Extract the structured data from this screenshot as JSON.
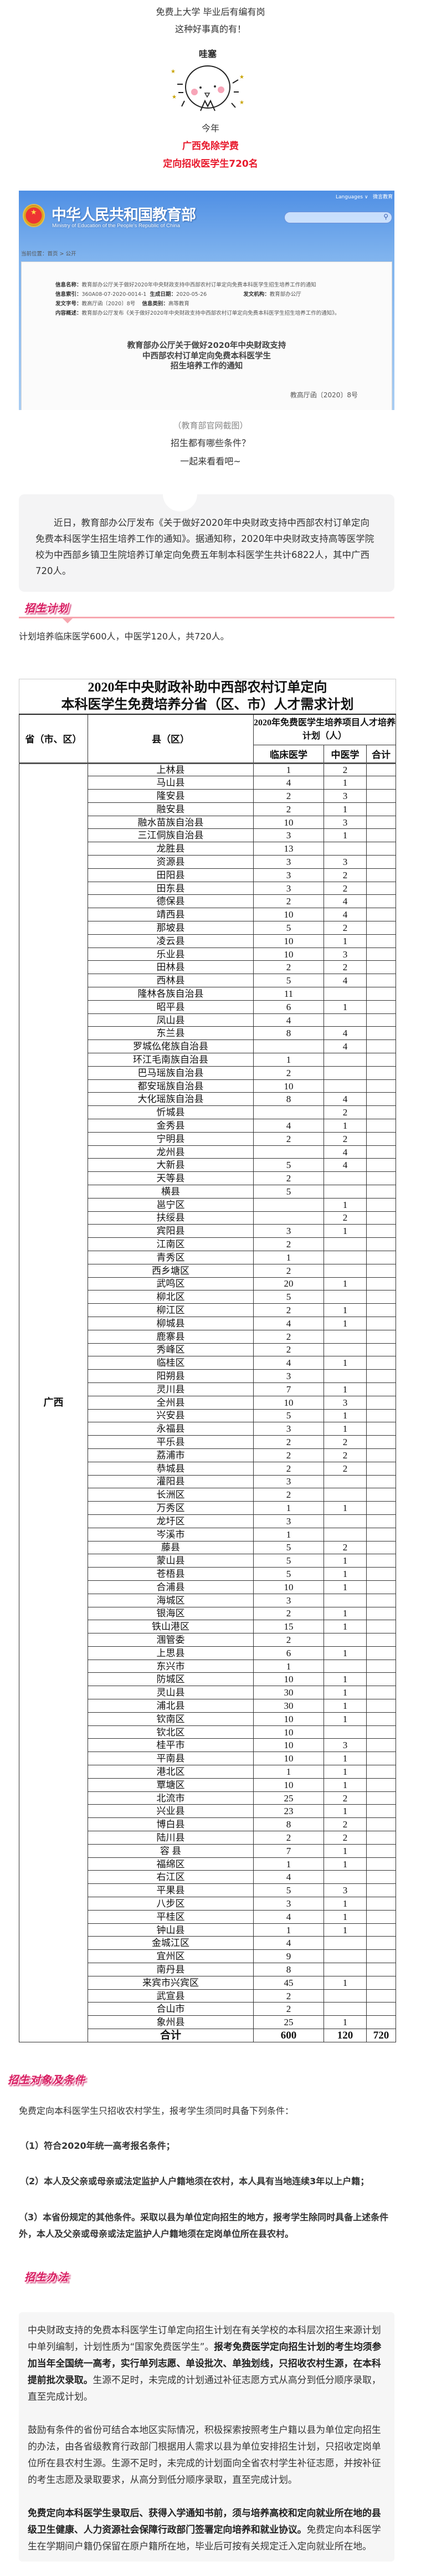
{
  "intro_lines": {
    "line1": "免费上大学 毕业后有编有岗",
    "line2": "这种好事真的有！",
    "mascot_label": "哇塞",
    "line3": "今年",
    "highlight1": "广西免除学费",
    "highlight2": "定向招收医学生720名"
  },
  "moe_screenshot": {
    "site_title": "中华人民共和国教育部",
    "site_subtitle": "Ministry of Education of the People's Republic of China",
    "languages": "Languages ∨",
    "weiyan": "微言教育",
    "search_icon": "search-icon",
    "breadcrumb": "当前位置：首页 > 公开",
    "info": {
      "name_label": "信息名称：",
      "name_value": "教育部办公厅关于做好2020年中央财政支持中西部农村订单定向免费本科医学生招生培养工作的通知",
      "index_label": "信息索引：",
      "index_value": "360A08-07-2020-0014-1",
      "date_label": "生成日期：",
      "date_value": "2020-05-26",
      "org_label": "发文机构：",
      "org_value": "教育部办公厅",
      "docno_label": "发文字号：",
      "docno_value": "教高厅函〔2020〕8号",
      "category_label": "信息类别：",
      "category_value": "高等教育",
      "summary_label": "内容概述：",
      "summary_value": "教育部办公厅发布《关于做好2020年中央财政支持中西部农村订单定向免费本科医学生招生培养工作的通知》。"
    },
    "doc_title": [
      "教育部办公厅关于做好2020年中央财政支持",
      "中西部农村订单定向免费本科医学生",
      "招生培养工作的通知"
    ],
    "doc_number": "教高厅函〔2020〕8号"
  },
  "caption": "（教育部官网截图）",
  "question": "招生都有哪些条件？",
  "lets_see": "一起来看看吧~",
  "intro_paragraph": "近日，教育部办公厅发布《关于做好2020年中央财政支持中西部农村订单定向免费本科医学生招生培养工作的通知》。据通知称，2020年中央财政支持高等医学院校为中西部乡镇卫生院培养订单定向免费五年制本科医学生共计6822人，其中广西720人。",
  "section_plan": {
    "heading": "招生计划",
    "text": "计划培养临床医学600人，中医学120人，共720人。"
  },
  "table": {
    "title": [
      "2020年中央财政补助中西部农村订单定向",
      "本科医学生免费培养分省（区、市）人才需求计划"
    ],
    "header_province": "省（市、区）",
    "header_county": "县（区）",
    "header_plan": "2020年免费医学生培养项目人才培养计划（人）",
    "header_clinical": "临床医学",
    "header_tcm": "中医学",
    "header_total": "合计",
    "province": "广西",
    "rows": [
      [
        "上林县",
        "1",
        "2",
        ""
      ],
      [
        "马山县",
        "4",
        "1",
        ""
      ],
      [
        "隆安县",
        "2",
        "3",
        ""
      ],
      [
        "融安县",
        "2",
        "1",
        ""
      ],
      [
        "融水苗族自治县",
        "10",
        "3",
        ""
      ],
      [
        "三江侗族自治县",
        "3",
        "1",
        ""
      ],
      [
        "龙胜县",
        "13",
        "",
        ""
      ],
      [
        "资源县",
        "3",
        "3",
        ""
      ],
      [
        "田阳县",
        "3",
        "2",
        ""
      ],
      [
        "田东县",
        "3",
        "2",
        ""
      ],
      [
        "德保县",
        "2",
        "4",
        ""
      ],
      [
        "靖西县",
        "10",
        "4",
        ""
      ],
      [
        "那坡县",
        "5",
        "2",
        ""
      ],
      [
        "凌云县",
        "10",
        "1",
        ""
      ],
      [
        "乐业县",
        "10",
        "3",
        ""
      ],
      [
        "田林县",
        "2",
        "2",
        ""
      ],
      [
        "西林县",
        "5",
        "4",
        ""
      ],
      [
        "隆林各族自治县",
        "11",
        "",
        ""
      ],
      [
        "昭平县",
        "6",
        "1",
        ""
      ],
      [
        "凤山县",
        "4",
        "",
        ""
      ],
      [
        "东兰县",
        "8",
        "4",
        ""
      ],
      [
        "罗城仫佬族自治县",
        "",
        "4",
        ""
      ],
      [
        "环江毛南族自治县",
        "1",
        "",
        ""
      ],
      [
        "巴马瑶族自治县",
        "2",
        "",
        ""
      ],
      [
        "都安瑶族自治县",
        "10",
        "",
        ""
      ],
      [
        "大化瑶族自治县",
        "8",
        "4",
        ""
      ],
      [
        "忻城县",
        "",
        "2",
        ""
      ],
      [
        "金秀县",
        "4",
        "1",
        ""
      ],
      [
        "宁明县",
        "2",
        "2",
        ""
      ],
      [
        "龙州县",
        "",
        "4",
        ""
      ],
      [
        "大新县",
        "5",
        "4",
        ""
      ],
      [
        "天等县",
        "2",
        "",
        ""
      ],
      [
        "横县",
        "5",
        "",
        ""
      ],
      [
        "邕宁区",
        "",
        "1",
        ""
      ],
      [
        "扶绥县",
        "",
        "2",
        ""
      ],
      [
        "宾阳县",
        "3",
        "1",
        ""
      ],
      [
        "江南区",
        "2",
        "",
        ""
      ],
      [
        "青秀区",
        "1",
        "",
        ""
      ],
      [
        "西乡塘区",
        "2",
        "",
        ""
      ],
      [
        "武鸣区",
        "20",
        "1",
        ""
      ],
      [
        "柳北区",
        "5",
        "",
        ""
      ],
      [
        "柳江区",
        "2",
        "1",
        ""
      ],
      [
        "柳城县",
        "4",
        "1",
        ""
      ],
      [
        "鹿寨县",
        "2",
        "",
        ""
      ],
      [
        "秀峰区",
        "2",
        "",
        ""
      ],
      [
        "临桂区",
        "4",
        "1",
        ""
      ],
      [
        "阳朔县",
        "3",
        "",
        ""
      ],
      [
        "灵川县",
        "7",
        "1",
        ""
      ],
      [
        "全州县",
        "10",
        "3",
        ""
      ],
      [
        "兴安县",
        "5",
        "1",
        ""
      ],
      [
        "永福县",
        "3",
        "1",
        ""
      ],
      [
        "平乐县",
        "2",
        "2",
        ""
      ],
      [
        "荔浦市",
        "2",
        "2",
        ""
      ],
      [
        "恭城县",
        "2",
        "2",
        ""
      ],
      [
        "灌阳县",
        "3",
        "",
        ""
      ],
      [
        "长洲区",
        "2",
        "",
        ""
      ],
      [
        "万秀区",
        "1",
        "1",
        ""
      ],
      [
        "龙圩区",
        "3",
        "",
        ""
      ],
      [
        "岑溪市",
        "1",
        "",
        ""
      ],
      [
        "藤县",
        "5",
        "2",
        ""
      ],
      [
        "蒙山县",
        "5",
        "1",
        ""
      ],
      [
        "苍梧县",
        "5",
        "1",
        ""
      ],
      [
        "合浦县",
        "10",
        "1",
        ""
      ],
      [
        "海城区",
        "3",
        "",
        ""
      ],
      [
        "银海区",
        "2",
        "1",
        ""
      ],
      [
        "铁山港区",
        "15",
        "1",
        ""
      ],
      [
        "涠管委",
        "2",
        "",
        ""
      ],
      [
        "上思县",
        "6",
        "1",
        ""
      ],
      [
        "东兴市",
        "1",
        "",
        ""
      ],
      [
        "防城区",
        "10",
        "1",
        ""
      ],
      [
        "灵山县",
        "30",
        "1",
        ""
      ],
      [
        "浦北县",
        "30",
        "1",
        ""
      ],
      [
        "钦南区",
        "10",
        "1",
        ""
      ],
      [
        "钦北区",
        "10",
        "",
        ""
      ],
      [
        "桂平市",
        "10",
        "3",
        ""
      ],
      [
        "平南县",
        "10",
        "1",
        ""
      ],
      [
        "港北区",
        "1",
        "1",
        ""
      ],
      [
        "覃塘区",
        "10",
        "1",
        ""
      ],
      [
        "北流市",
        "25",
        "2",
        ""
      ],
      [
        "兴业县",
        "23",
        "1",
        ""
      ],
      [
        "博白县",
        "8",
        "2",
        ""
      ],
      [
        "陆川县",
        "2",
        "2",
        ""
      ],
      [
        "容 县",
        "7",
        "1",
        ""
      ],
      [
        "福绵区",
        "1",
        "1",
        ""
      ],
      [
        "右江区",
        "4",
        "",
        ""
      ],
      [
        "平果县",
        "5",
        "3",
        ""
      ],
      [
        "八步区",
        "3",
        "1",
        ""
      ],
      [
        "平桂区",
        "4",
        "1",
        ""
      ],
      [
        "钟山县",
        "1",
        "1",
        ""
      ],
      [
        "金城江区",
        "4",
        "",
        ""
      ],
      [
        "宜州区",
        "9",
        "",
        ""
      ],
      [
        "南丹县",
        "8",
        "",
        ""
      ],
      [
        "来宾市兴宾区",
        "45",
        "1",
        ""
      ],
      [
        "武宣县",
        "2",
        "",
        ""
      ],
      [
        "合山市",
        "2",
        "",
        ""
      ],
      [
        "象州县",
        "25",
        "1",
        ""
      ]
    ],
    "total": {
      "label": "合计",
      "clinical": "600",
      "tcm": "120",
      "total": "720"
    }
  },
  "section_conditions": {
    "heading": "招生对象及条件",
    "text": "免费定向本科医学生只招收农村学生，报考学生须同时具备下列条件：",
    "items": [
      "（1）符合2020年统一高考报名条件；",
      "（2）本人及父亲或母亲或法定监护人户籍地须在农村，本人具有当地连续3年以上户籍；",
      "（3）本省份规定的其他条件。采取以县为单位定向招生的地方，报考学生除同时具备上述条件外，本人及父亲或母亲或法定监护人户籍地须在定岗单位所在县农村。"
    ]
  },
  "section_method": {
    "heading": "招生办法",
    "paragraphs": [
      [
        {
          "text": "中央财政支持的免费本科医学生订单定向招生计划在有关学校的本科层次招生来源计划中单列编制，计划性质为“国家免费医学生”。",
          "bold": false
        },
        {
          "text": "报考免费医学定向招生计划的考生均须参加当年全国统一高考，实行单列志愿、单设批次、单独划线，只招收农村生源，在本科提前批次录取。",
          "bold": true
        },
        {
          "text": "生源不足时，未完成的计划通过补征志愿方式从高分到低分顺序录取，直至完成计划。",
          "bold": false
        }
      ],
      [
        {
          "text": "鼓励有条件的省份可结合本地区实际情况，积极探索按照考生户籍以县为单位定向招生的办法，由各省级教育行政部门根据用人需求以县为单位安排招生计划，只招收定岗单位所在县农村生源。生源不足时，未完成的计划面向全省农村学生补征志愿，并按补征的考生志愿及录取要求，从高分到低分顺序录取，直至完成计划。",
          "bold": false
        }
      ],
      [
        {
          "text": "免费定向本科医学生录取后、获得入学通知书前，须与培养高校和定向就业所在地的县级卫生健康、人力资源社会保障行政部门签署定向培养和就业协议。",
          "bold": true
        },
        {
          "text": "免费定向本科医学生在学期间户籍仍保留在原户籍所在地，毕业后可按有关规定迁入定向就业所在地。",
          "bold": false
        }
      ]
    ]
  },
  "colors": {
    "highlight_red": "#e8192c",
    "heading_pink": "#d81b60",
    "divider_pink": "#f7a7b0",
    "box_gray": "#f4f4f5"
  }
}
